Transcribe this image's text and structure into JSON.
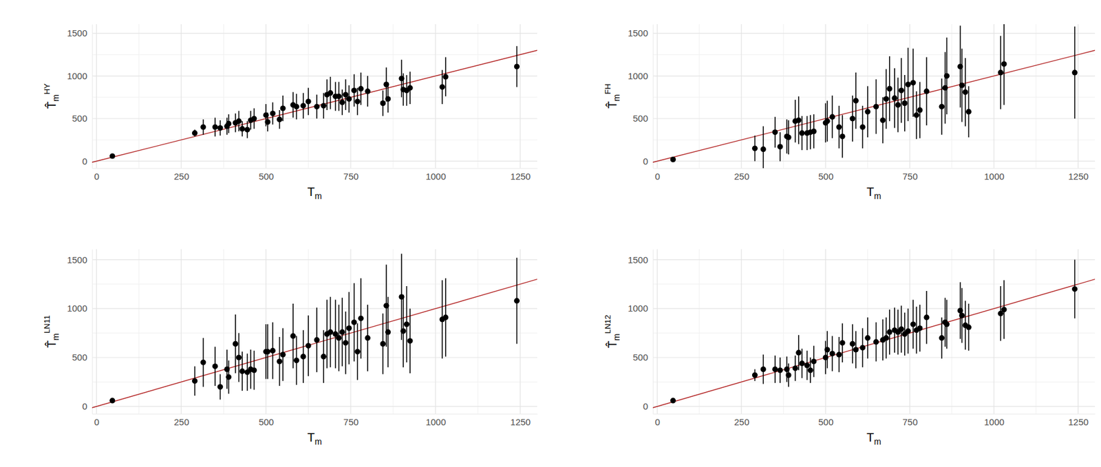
{
  "chart_data": [
    {
      "type": "scatter",
      "x_label": {
        "base": "T",
        "sub": "m"
      },
      "y_label": {
        "base": "T̂",
        "sub": "m",
        "sup": "HY"
      },
      "x": [
        47,
        290,
        315,
        350,
        365,
        385,
        390,
        410,
        420,
        430,
        445,
        455,
        465,
        500,
        505,
        520,
        540,
        550,
        580,
        590,
        610,
        625,
        650,
        670,
        680,
        690,
        705,
        715,
        725,
        735,
        745,
        760,
        770,
        780,
        800,
        845,
        855,
        860,
        900,
        905,
        915,
        925,
        1020,
        1030,
        1240
      ],
      "values": [
        60,
        330,
        400,
        400,
        390,
        410,
        440,
        450,
        470,
        380,
        370,
        480,
        500,
        540,
        460,
        560,
        490,
        620,
        660,
        640,
        650,
        700,
        640,
        650,
        780,
        800,
        760,
        760,
        690,
        780,
        730,
        830,
        700,
        850,
        820,
        680,
        900,
        730,
        970,
        840,
        830,
        860,
        870,
        990,
        1110
      ],
      "error": [
        10,
        40,
        90,
        110,
        90,
        100,
        110,
        110,
        120,
        90,
        100,
        110,
        120,
        130,
        110,
        130,
        110,
        150,
        150,
        150,
        150,
        160,
        140,
        150,
        180,
        190,
        170,
        170,
        150,
        180,
        160,
        190,
        160,
        190,
        180,
        150,
        200,
        160,
        220,
        190,
        180,
        190,
        200,
        230,
        240
      ],
      "xlim": [
        -13,
        1300
      ],
      "ylim": [
        -82,
        1607
      ],
      "xticks": [
        0,
        250,
        500,
        750,
        1000,
        1250
      ],
      "yticks": [
        0,
        500,
        1000,
        1500
      ],
      "grid": true,
      "color": "#000000",
      "marker": "circle",
      "reference_line": {
        "slope": 1,
        "intercept": 0
      }
    },
    {
      "type": "scatter",
      "x_label": {
        "base": "T",
        "sub": "m"
      },
      "y_label": {
        "base": "T̂",
        "sub": "m",
        "sup": "FH"
      },
      "x": [
        47,
        290,
        315,
        350,
        365,
        385,
        390,
        410,
        420,
        430,
        445,
        455,
        465,
        500,
        505,
        520,
        540,
        550,
        580,
        590,
        610,
        625,
        650,
        670,
        680,
        690,
        705,
        715,
        725,
        735,
        745,
        760,
        770,
        780,
        800,
        845,
        855,
        860,
        900,
        905,
        915,
        925,
        1020,
        1030,
        1240
      ],
      "values": [
        20,
        150,
        140,
        340,
        170,
        290,
        280,
        470,
        480,
        330,
        330,
        340,
        350,
        450,
        470,
        520,
        400,
        290,
        500,
        710,
        400,
        580,
        640,
        480,
        730,
        850,
        740,
        660,
        830,
        680,
        900,
        920,
        540,
        600,
        820,
        640,
        860,
        1000,
        1110,
        890,
        810,
        580,
        1040,
        1140,
        1040
      ],
      "error": [
        15,
        150,
        270,
        180,
        170,
        200,
        200,
        250,
        280,
        200,
        200,
        200,
        200,
        230,
        240,
        250,
        250,
        250,
        270,
        330,
        250,
        300,
        320,
        270,
        350,
        380,
        350,
        320,
        380,
        330,
        430,
        400,
        280,
        330,
        400,
        330,
        420,
        450,
        480,
        430,
        400,
        300,
        430,
        480,
        540
      ],
      "xlim": [
        -13,
        1300
      ],
      "ylim": [
        -82,
        1607
      ],
      "xticks": [
        0,
        250,
        500,
        750,
        1000,
        1250
      ],
      "yticks": [
        0,
        500,
        1000,
        1500
      ],
      "grid": true,
      "color": "#000000",
      "marker": "circle",
      "reference_line": {
        "slope": 1,
        "intercept": 0
      }
    },
    {
      "type": "scatter",
      "x_label": {
        "base": "T",
        "sub": "m"
      },
      "y_label": {
        "base": "T̂",
        "sub": "m",
        "sup": "LN11"
      },
      "x": [
        47,
        290,
        315,
        350,
        365,
        385,
        390,
        410,
        420,
        430,
        445,
        455,
        465,
        500,
        505,
        520,
        540,
        550,
        580,
        590,
        610,
        625,
        650,
        670,
        680,
        690,
        705,
        715,
        725,
        735,
        745,
        760,
        770,
        780,
        800,
        845,
        855,
        860,
        900,
        905,
        915,
        925,
        1020,
        1030,
        1240
      ],
      "values": [
        60,
        260,
        450,
        410,
        200,
        380,
        300,
        640,
        500,
        360,
        350,
        380,
        370,
        560,
        560,
        570,
        460,
        530,
        720,
        470,
        510,
        620,
        680,
        510,
        740,
        760,
        740,
        700,
        760,
        650,
        800,
        860,
        560,
        900,
        700,
        640,
        1030,
        760,
        1120,
        770,
        840,
        670,
        890,
        910,
        1080
      ],
      "error": [
        20,
        150,
        250,
        200,
        130,
        200,
        170,
        300,
        250,
        200,
        190,
        200,
        200,
        280,
        280,
        290,
        250,
        270,
        330,
        250,
        270,
        310,
        330,
        270,
        350,
        360,
        350,
        340,
        350,
        320,
        370,
        400,
        290,
        410,
        340,
        310,
        420,
        360,
        440,
        370,
        390,
        330,
        400,
        400,
        440
      ],
      "xlim": [
        -13,
        1300
      ],
      "ylim": [
        -75,
        1607
      ],
      "xticks": [
        0,
        250,
        500,
        750,
        1000,
        1250
      ],
      "yticks": [
        0,
        500,
        1000,
        1500
      ],
      "grid": true,
      "color": "#000000",
      "marker": "circle",
      "reference_line": {
        "slope": 1,
        "intercept": 0
      }
    },
    {
      "type": "scatter",
      "x_label": {
        "base": "T",
        "sub": "m"
      },
      "y_label": {
        "base": "T̂",
        "sub": "m",
        "sup": "LN12"
      },
      "x": [
        47,
        290,
        315,
        350,
        365,
        385,
        390,
        410,
        420,
        430,
        445,
        455,
        465,
        500,
        505,
        520,
        540,
        550,
        580,
        590,
        610,
        625,
        650,
        670,
        680,
        690,
        705,
        715,
        725,
        735,
        745,
        760,
        770,
        780,
        800,
        845,
        855,
        860,
        900,
        905,
        915,
        925,
        1020,
        1030,
        1240
      ],
      "values": [
        60,
        320,
        380,
        380,
        370,
        380,
        320,
        390,
        550,
        440,
        420,
        370,
        460,
        500,
        580,
        540,
        530,
        650,
        640,
        580,
        600,
        700,
        660,
        680,
        700,
        760,
        780,
        760,
        790,
        740,
        770,
        840,
        780,
        800,
        910,
        700,
        860,
        840,
        980,
        930,
        830,
        810,
        950,
        990,
        1200
      ],
      "error": [
        10,
        60,
        150,
        140,
        130,
        130,
        120,
        130,
        180,
        150,
        150,
        130,
        160,
        170,
        190,
        180,
        180,
        200,
        200,
        190,
        200,
        210,
        200,
        210,
        210,
        230,
        230,
        230,
        240,
        220,
        230,
        250,
        240,
        240,
        270,
        210,
        250,
        250,
        290,
        280,
        250,
        240,
        280,
        300,
        300
      ],
      "xlim": [
        -13,
        1300
      ],
      "ylim": [
        -75,
        1607
      ],
      "xticks": [
        0,
        250,
        500,
        750,
        1000,
        1250
      ],
      "yticks": [
        0,
        500,
        1000,
        1500
      ],
      "grid": true,
      "color": "#000000",
      "marker": "circle",
      "reference_line": {
        "slope": 1,
        "intercept": 0
      }
    }
  ]
}
